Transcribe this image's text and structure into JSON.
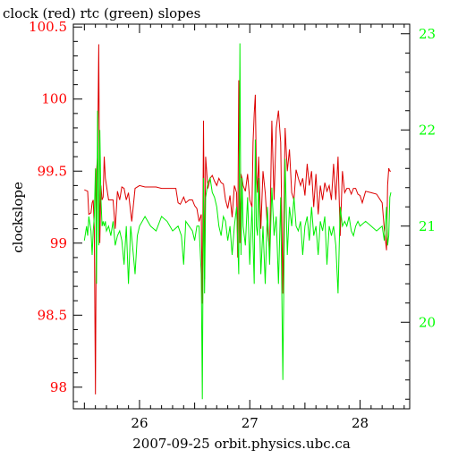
{
  "chart_data": {
    "type": "line",
    "title": "clock (red) rtc (green) slopes",
    "ylabel": "clockslope",
    "xlabel": "2007-09-25 orbit.physics.ubc.ca",
    "xlim": [
      25.4,
      28.45
    ],
    "ylim_left": [
      97.85,
      100.52
    ],
    "ylim_right": [
      19.1,
      23.1
    ],
    "x_tick_labels": [
      "26",
      "27",
      "28"
    ],
    "x_ticks": [
      26,
      27,
      28
    ],
    "left_tick_labels": [
      "100.5",
      "100",
      "99.5",
      "99",
      "98.5",
      "98"
    ],
    "left_ticks": [
      100.5,
      100,
      99.5,
      99,
      98.5,
      98
    ],
    "right_tick_labels": [
      "23",
      "22",
      "21",
      "20"
    ],
    "right_ticks": [
      23,
      22,
      21,
      20
    ],
    "left_axis_color": "#ff0000",
    "right_axis_color": "#00ff00",
    "grid": false,
    "series": [
      {
        "name": "clock",
        "axis": "left",
        "color": "#dd0000",
        "x": [
          25.5,
          25.53,
          25.54,
          25.56,
          25.57,
          25.58,
          25.59,
          25.6,
          25.61,
          25.62,
          25.63,
          25.64,
          25.65,
          25.66,
          25.67,
          25.68,
          25.69,
          25.72,
          25.74,
          25.76,
          25.78,
          25.8,
          25.82,
          25.84,
          25.86,
          25.88,
          25.9,
          25.93,
          25.96,
          26.0,
          26.05,
          26.1,
          26.15,
          26.2,
          26.25,
          26.3,
          26.33,
          26.35,
          26.37,
          26.4,
          26.42,
          26.45,
          26.48,
          26.5,
          26.52,
          26.54,
          26.56,
          26.57,
          26.58,
          26.59,
          26.6,
          26.62,
          26.64,
          26.66,
          26.68,
          26.7,
          26.72,
          26.74,
          26.76,
          26.78,
          26.8,
          26.82,
          26.84,
          26.86,
          26.88,
          26.89,
          26.9,
          26.91,
          26.92,
          26.93,
          26.94,
          26.96,
          26.98,
          27.0,
          27.02,
          27.03,
          27.04,
          27.05,
          27.06,
          27.07,
          27.08,
          27.1,
          27.12,
          27.14,
          27.16,
          27.18,
          27.2,
          27.22,
          27.24,
          27.26,
          27.28,
          27.3,
          27.32,
          27.34,
          27.36,
          27.38,
          27.4,
          27.42,
          27.44,
          27.46,
          27.48,
          27.5,
          27.52,
          27.54,
          27.56,
          27.58,
          27.6,
          27.62,
          27.64,
          27.66,
          27.68,
          27.7,
          27.72,
          27.74,
          27.76,
          27.78,
          27.8,
          27.82,
          27.84,
          27.86,
          27.88,
          27.9,
          27.92,
          27.94,
          27.96,
          27.98,
          28.0,
          28.02,
          28.05,
          28.1,
          28.15,
          28.2,
          28.22,
          28.24,
          28.25,
          28.26,
          28.27,
          28.28
        ],
        "y": [
          99.37,
          99.36,
          99.2,
          99.21,
          99.28,
          99.3,
          99.1,
          97.95,
          99.5,
          99.6,
          100.38,
          99.0,
          99.4,
          99.3,
          99.32,
          99.6,
          99.45,
          99.3,
          99.3,
          99.3,
          99.1,
          99.36,
          99.3,
          99.39,
          99.38,
          99.3,
          99.35,
          99.15,
          99.38,
          99.4,
          99.39,
          99.39,
          99.39,
          99.38,
          99.38,
          99.38,
          99.38,
          99.28,
          99.27,
          99.32,
          99.28,
          99.3,
          99.3,
          99.26,
          99.24,
          99.15,
          99.2,
          98.58,
          99.85,
          98.75,
          99.6,
          99.38,
          99.45,
          99.47,
          99.43,
          99.4,
          99.45,
          99.42,
          99.41,
          99.3,
          99.24,
          99.33,
          99.18,
          99.4,
          99.35,
          98.9,
          100.13,
          99.0,
          99.48,
          99.45,
          99.4,
          99.36,
          99.48,
          99.3,
          99.25,
          99.7,
          99.9,
          100.03,
          99.5,
          99.35,
          99.6,
          99.1,
          99.5,
          99.35,
          99.1,
          98.95,
          99.85,
          99.3,
          99.8,
          99.92,
          99.7,
          98.65,
          99.8,
          99.5,
          99.65,
          99.35,
          99.3,
          99.51,
          99.45,
          99.4,
          99.45,
          99.33,
          99.55,
          99.4,
          99.5,
          99.25,
          99.48,
          99.2,
          99.4,
          99.3,
          99.42,
          99.36,
          99.4,
          99.3,
          99.55,
          99.3,
          99.6,
          99.05,
          99.5,
          99.35,
          99.38,
          99.38,
          99.34,
          99.38,
          99.38,
          99.34,
          99.33,
          99.28,
          99.36,
          99.35,
          99.34,
          99.28,
          99.1,
          98.95,
          99.4,
          99.52,
          99.5,
          99.5
        ],
        "line_width": 1
      },
      {
        "name": "rtc",
        "axis": "right",
        "color": "#00ee00",
        "x": [
          25.5,
          25.52,
          25.53,
          25.54,
          25.56,
          25.57,
          25.58,
          25.59,
          25.6,
          25.61,
          25.62,
          25.63,
          25.64,
          25.65,
          25.66,
          25.67,
          25.68,
          25.69,
          25.7,
          25.72,
          25.74,
          25.76,
          25.78,
          25.8,
          25.82,
          25.84,
          25.86,
          25.88,
          25.9,
          25.92,
          25.94,
          25.96,
          25.98,
          26.0,
          26.05,
          26.1,
          26.15,
          26.2,
          26.25,
          26.3,
          26.35,
          26.38,
          26.4,
          26.42,
          26.45,
          26.48,
          26.5,
          26.52,
          26.54,
          26.56,
          26.57,
          26.58,
          26.59,
          26.6,
          26.62,
          26.64,
          26.66,
          26.68,
          26.7,
          26.72,
          26.74,
          26.76,
          26.78,
          26.8,
          26.82,
          26.84,
          26.86,
          26.88,
          26.9,
          26.91,
          26.92,
          26.93,
          26.94,
          26.96,
          26.98,
          27.0,
          27.02,
          27.04,
          27.05,
          27.06,
          27.07,
          27.08,
          27.1,
          27.12,
          27.14,
          27.16,
          27.18,
          27.2,
          27.22,
          27.24,
          27.26,
          27.28,
          27.3,
          27.32,
          27.34,
          27.36,
          27.38,
          27.4,
          27.42,
          27.44,
          27.46,
          27.48,
          27.5,
          27.52,
          27.54,
          27.56,
          27.58,
          27.6,
          27.62,
          27.64,
          27.66,
          27.68,
          27.7,
          27.72,
          27.74,
          27.76,
          27.78,
          27.8,
          27.82,
          27.84,
          27.86,
          27.88,
          27.9,
          27.92,
          27.94,
          27.96,
          27.98,
          28.0,
          28.05,
          28.1,
          28.15,
          28.2,
          28.22,
          28.24,
          28.25,
          28.26,
          28.27,
          28.28
        ],
        "y": [
          20.85,
          21.0,
          20.9,
          21.1,
          20.95,
          20.7,
          20.95,
          21.1,
          21.6,
          20.4,
          22.2,
          20.8,
          22.0,
          21.3,
          21.0,
          21.05,
          21.0,
          21.05,
          20.95,
          21.0,
          20.9,
          21.05,
          20.8,
          20.9,
          20.95,
          20.85,
          20.6,
          21.0,
          20.4,
          21.0,
          20.75,
          20.5,
          20.9,
          21.0,
          21.1,
          21.0,
          20.95,
          21.1,
          21.05,
          20.95,
          21.0,
          20.9,
          20.6,
          21.05,
          21.0,
          20.95,
          20.85,
          21.0,
          21.0,
          20.5,
          19.2,
          21.5,
          20.3,
          21.3,
          21.45,
          21.5,
          21.35,
          21.3,
          21.2,
          21.0,
          20.9,
          21.1,
          21.05,
          20.85,
          21.0,
          20.7,
          21.0,
          21.2,
          20.5,
          22.9,
          20.7,
          21.5,
          21.0,
          20.8,
          21.3,
          20.6,
          21.2,
          20.4,
          21.9,
          21.0,
          20.9,
          21.5,
          20.5,
          21.0,
          20.4,
          21.2,
          20.6,
          21.4,
          20.9,
          21.1,
          20.4,
          21.3,
          19.4,
          21.7,
          20.7,
          21.2,
          21.0,
          21.3,
          21.0,
          20.95,
          21.05,
          20.7,
          21.0,
          21.1,
          20.85,
          21.2,
          20.9,
          21.0,
          20.7,
          21.05,
          20.95,
          21.1,
          20.6,
          21.0,
          20.9,
          21.0,
          20.8,
          20.3,
          21.2,
          21.0,
          21.05,
          21.0,
          21.1,
          20.95,
          20.9,
          21.0,
          21.05,
          21.0,
          21.05,
          21.0,
          20.95,
          21.0,
          20.85,
          21.2,
          20.8,
          20.9,
          21.3,
          21.35
        ],
        "line_width": 1
      }
    ]
  }
}
